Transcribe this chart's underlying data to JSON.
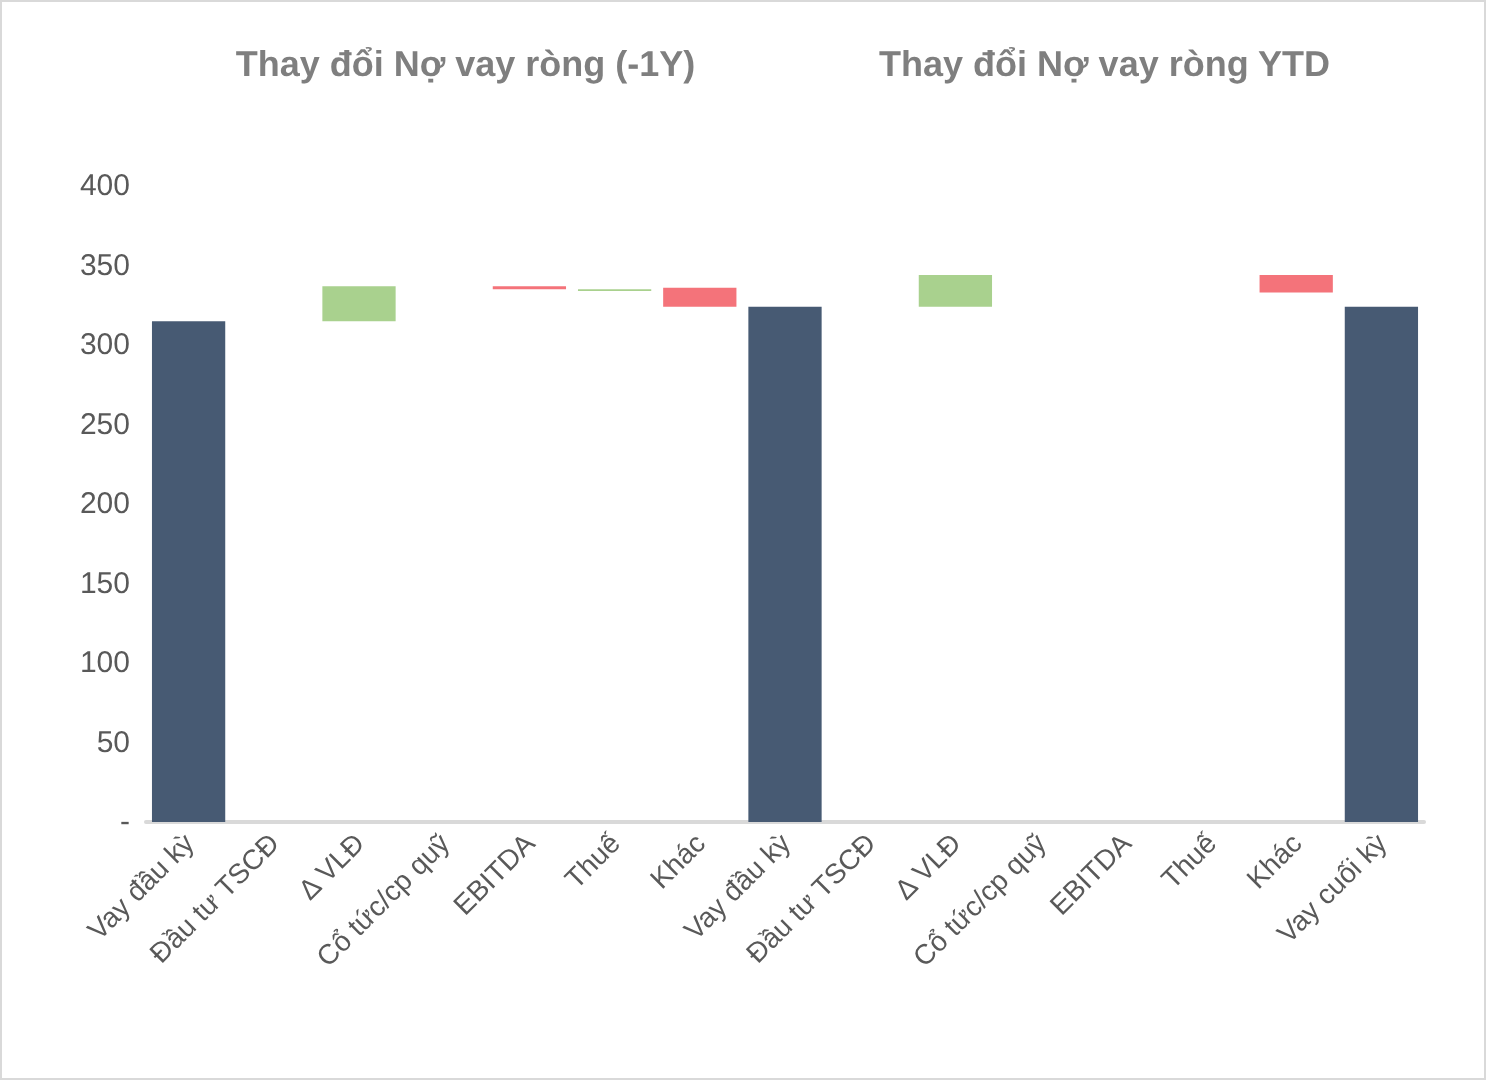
{
  "chart_data": {
    "type": "bar",
    "annotations": [
      "Thay đổi Nợ vay ròng (-1Y)",
      "Thay đổi Nợ vay ròng YTD"
    ],
    "categories": [
      "Vay đầu kỳ",
      "Đầu tư TSCĐ",
      "Δ VLĐ",
      "Cổ tức/cp quỹ",
      "EBITDA",
      "Thuế",
      "Khác",
      "Vay đầu kỳ",
      "Đầu tư TSCĐ",
      "Δ VLĐ",
      "Cổ tức/cp quỹ",
      "EBITDA",
      "Thuế",
      "Khác",
      "Vay cuối kỳ"
    ],
    "values": [
      315,
      null,
      22,
      null,
      2,
      1,
      12,
      324,
      null,
      20,
      null,
      null,
      null,
      11,
      324
    ],
    "base": [
      0,
      null,
      315,
      null,
      335,
      334,
      324,
      0,
      null,
      324,
      null,
      null,
      null,
      333,
      0
    ],
    "colors": [
      "#475a73",
      null,
      "#a9d18e",
      null,
      "#f4737a",
      "#a9d18e",
      "#f4737a",
      "#475a73",
      null,
      "#a9d18e",
      null,
      null,
      null,
      "#f4737a",
      "#475a73"
    ],
    "ylim": [
      0,
      400
    ],
    "yticks": [
      {
        "value": 0,
        "label": "-"
      },
      50,
      100,
      150,
      200,
      250,
      300,
      350,
      400
    ],
    "grid": false
  }
}
